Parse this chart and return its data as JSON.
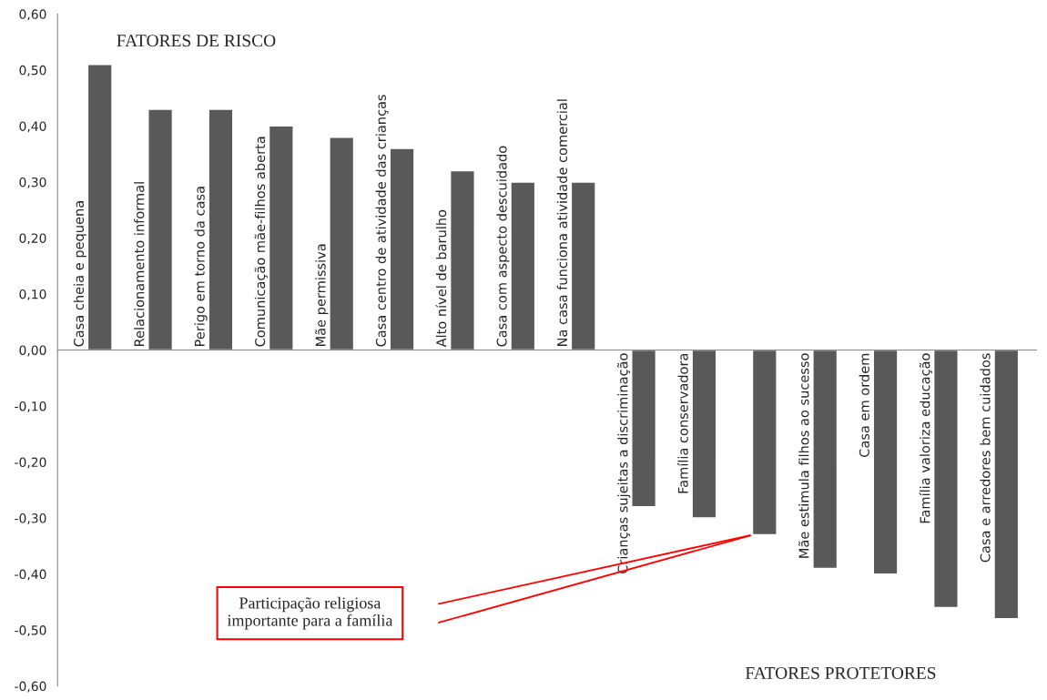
{
  "chart_data": {
    "type": "bar",
    "categories": [
      "Casa cheia e pequena",
      "Relacionamento informal",
      "Perigo em torno da casa",
      "Comunicação mãe-filhos aberta",
      "Mãe permissiva",
      "Casa centro de atividade das crianças",
      "Alto nível de barulho",
      "Casa com aspecto descuidado",
      "Na casa funciona atividade comercial",
      "Crianças sujeitas a discriminação",
      "Família conservadora",
      null,
      "Mãe estimula filhos ao sucesso",
      "Casa em ordem",
      "Família valoriza educação",
      "Casa e arredores bem cuidados"
    ],
    "values": [
      0.51,
      0.43,
      0.43,
      0.4,
      0.38,
      0.36,
      0.32,
      0.3,
      0.3,
      -0.28,
      -0.3,
      -0.33,
      -0.39,
      -0.4,
      -0.46,
      -0.48
    ],
    "color": "#595959",
    "ylim": [
      -0.6,
      0.6
    ],
    "yticks": [
      {
        "value": -0.6,
        "label": "-0,60"
      },
      {
        "value": -0.5,
        "label": "-0,50"
      },
      {
        "value": -0.4,
        "label": "-0,40"
      },
      {
        "value": -0.3,
        "label": "-0,30"
      },
      {
        "value": -0.2,
        "label": "-0,20"
      },
      {
        "value": -0.1,
        "label": "-0,10"
      },
      {
        "value": 0,
        "label": "0,00"
      },
      {
        "value": 0.1,
        "label": "0,10"
      },
      {
        "value": 0.2,
        "label": "0,20"
      },
      {
        "value": 0.3,
        "label": "0,30"
      },
      {
        "value": 0.4,
        "label": "0,40"
      },
      {
        "value": 0.5,
        "label": "0,50"
      },
      {
        "value": 0.6,
        "label": "0,60"
      }
    ],
    "grid": false,
    "annotations": [
      "FATORES DE RISCO",
      "FATORES PROTETORES",
      "Participação religiosa\nimportante para a família"
    ]
  }
}
